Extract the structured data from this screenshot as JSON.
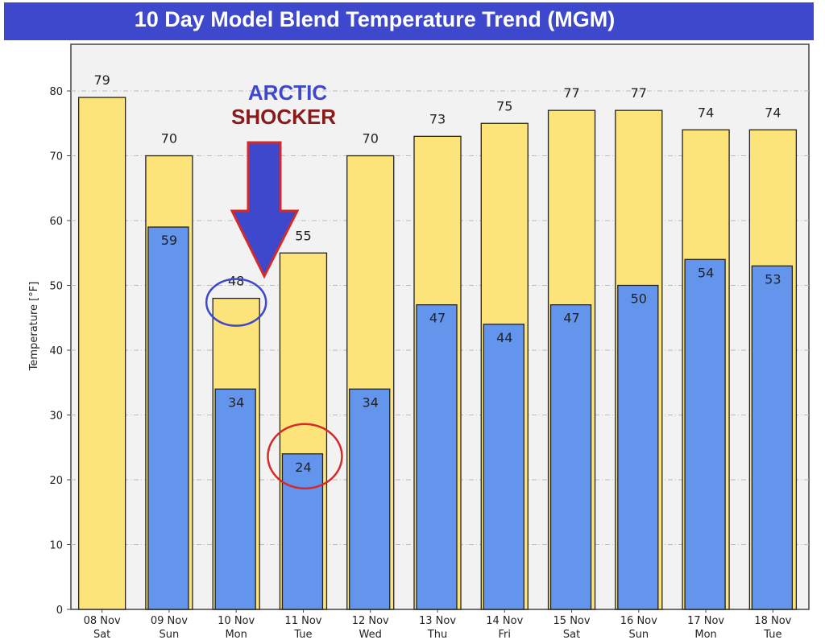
{
  "chart_data": {
    "type": "bar",
    "title": "10 Day Model Blend Temperature Trend (MGM)",
    "ylabel": "Temperature [°F]",
    "xlabel": "",
    "ylim": [
      0,
      85
    ],
    "yticks": [
      0,
      10,
      20,
      30,
      40,
      50,
      60,
      70,
      80
    ],
    "grid": true,
    "categories": [
      [
        "08 Nov",
        "Sat"
      ],
      [
        "09 Nov",
        "Sun"
      ],
      [
        "10 Nov",
        "Mon"
      ],
      [
        "11 Nov",
        "Tue"
      ],
      [
        "12 Nov",
        "Wed"
      ],
      [
        "13 Nov",
        "Thu"
      ],
      [
        "14 Nov",
        "Fri"
      ],
      [
        "15 Nov",
        "Sat"
      ],
      [
        "16 Nov",
        "Sun"
      ],
      [
        "17 Nov",
        "Mon"
      ],
      [
        "18 Nov",
        "Tue"
      ]
    ],
    "series": [
      {
        "values": [
          79,
          70,
          48,
          55,
          70,
          73,
          75,
          77,
          77,
          74,
          74
        ],
        "color": "#fde47a"
      },
      {
        "values": [
          null,
          59,
          34,
          24,
          34,
          47,
          44,
          47,
          50,
          54,
          53
        ],
        "color": "#6495ed"
      }
    ],
    "annotations": {
      "line1": "ARCTIC",
      "line2": "SHOCKER",
      "line1_color": "#3e48cc",
      "line2_color": "#8b1a1a",
      "arrow_target": "10 Nov",
      "circled": [
        {
          "category": "10 Nov",
          "value": 48,
          "color": "#3e48cc"
        },
        {
          "category": "11 Nov",
          "value": 24,
          "color": "#d42a2a"
        }
      ]
    }
  }
}
